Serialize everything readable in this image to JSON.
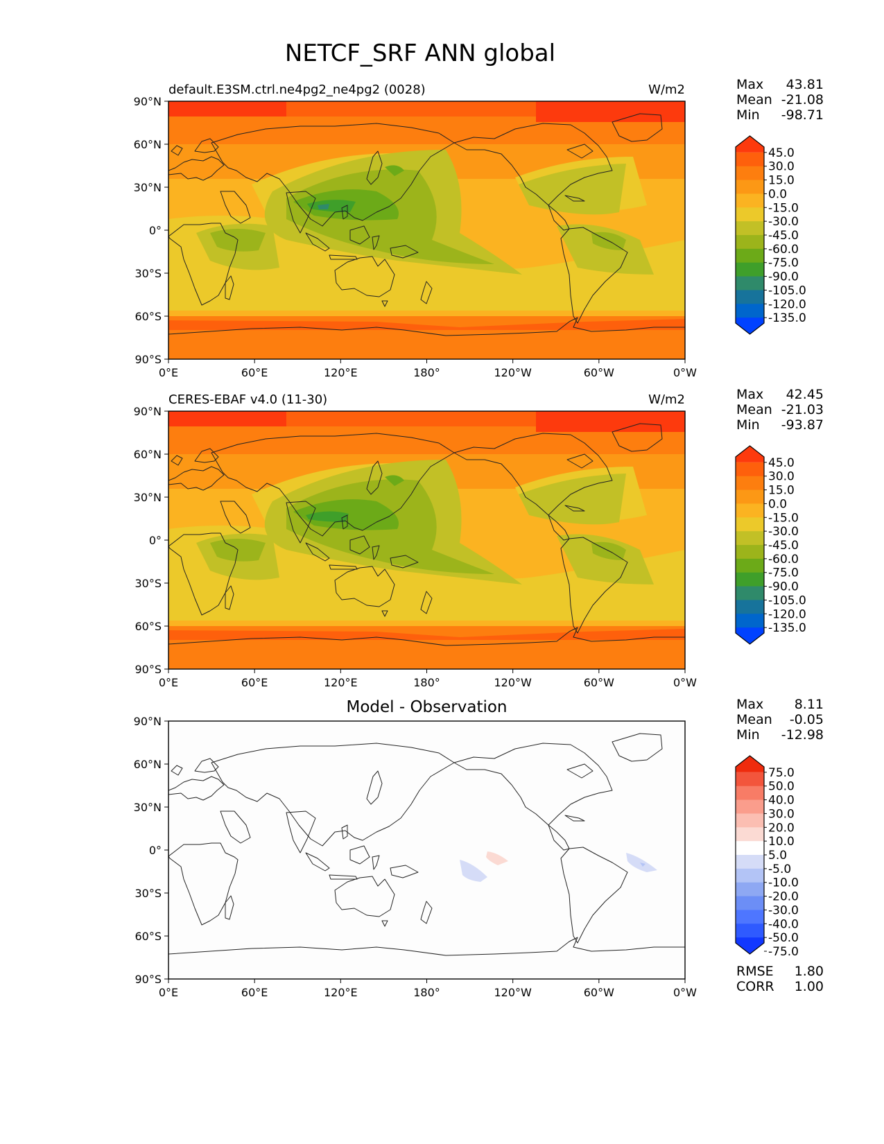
{
  "figure": {
    "title": "NETCF_SRF ANN global",
    "x_ticks": [
      "0°E",
      "60°E",
      "120°E",
      "180°",
      "120°W",
      "60°W",
      "0°W"
    ],
    "y_ticks": [
      "90°N",
      "60°N",
      "30°N",
      "0°",
      "30°S",
      "60°S",
      "90°S"
    ]
  },
  "colors": {
    "seq": [
      "#0042ff",
      "#0066cc",
      "#17739b",
      "#2f8a6a",
      "#3f9f2a",
      "#6caa18",
      "#9cb41b",
      "#c2c026",
      "#ecc92a",
      "#fbb321",
      "#fc9815",
      "#fd7e0f",
      "#fe600c",
      "#fd3a0d"
    ],
    "diff": [
      "#1238ff",
      "#2f5aff",
      "#4e76ff",
      "#6c8ef6",
      "#8ea8f3",
      "#b3c4f6",
      "#d5dcf7",
      "#ffffff",
      "#fbdad3",
      "#fbbeb2",
      "#fa9d8c",
      "#f87c66",
      "#f3553c",
      "#ef2b0d"
    ],
    "coast": "#222222"
  },
  "panels": [
    {
      "id": "test",
      "label": "default.E3SM.ctrl.ne4pg2_ne4pg2 (0028)",
      "units": "W/m2",
      "center_title": "",
      "stats": [
        {
          "name": "Max",
          "value": "43.81"
        },
        {
          "name": "Mean",
          "value": "-21.08"
        },
        {
          "name": "Min",
          "value": "-98.71"
        }
      ],
      "colorbar": {
        "ticks": [
          "45.0",
          "30.0",
          "15.0",
          "0.0",
          "-15.0",
          "-30.0",
          "-45.0",
          "-60.0",
          "-75.0",
          "-90.0",
          "-105.0",
          "-120.0",
          "-135.0"
        ]
      },
      "metrics": []
    },
    {
      "id": "ref",
      "label": "CERES-EBAF v4.0 (11-30)",
      "units": "W/m2",
      "center_title": "",
      "stats": [
        {
          "name": "Max",
          "value": "42.45"
        },
        {
          "name": "Mean",
          "value": "-21.03"
        },
        {
          "name": "Min",
          "value": "-93.87"
        }
      ],
      "colorbar": {
        "ticks": [
          "45.0",
          "30.0",
          "15.0",
          "0.0",
          "-15.0",
          "-30.0",
          "-45.0",
          "-60.0",
          "-75.0",
          "-90.0",
          "-105.0",
          "-120.0",
          "-135.0"
        ]
      },
      "metrics": []
    },
    {
      "id": "diff",
      "label": "",
      "units": "",
      "center_title": "Model - Observation",
      "stats": [
        {
          "name": "Max",
          "value": "8.11"
        },
        {
          "name": "Mean",
          "value": "-0.05"
        },
        {
          "name": "Min",
          "value": "-12.98"
        }
      ],
      "colorbar": {
        "ticks": [
          "75.0",
          "50.0",
          "40.0",
          "30.0",
          "20.0",
          "10.0",
          "5.0",
          "-5.0",
          "-10.0",
          "-20.0",
          "-30.0",
          "-40.0",
          "-50.0",
          "-75.0"
        ]
      },
      "metrics": [
        {
          "name": "RMSE",
          "value": "1.80"
        },
        {
          "name": "CORR",
          "value": "1.00"
        }
      ]
    }
  ]
}
